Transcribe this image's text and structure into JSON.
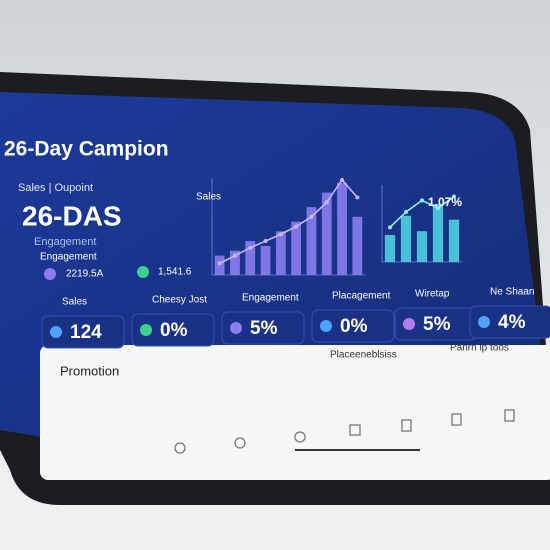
{
  "header": {
    "title": "26-Day Campion"
  },
  "summary": {
    "label": "Sales | Oupoint",
    "value": "26-DAS",
    "sub1": "Engagement",
    "sub2": "Engagement",
    "stat1": "2219.5A",
    "stat2": "1,541.6"
  },
  "charts": [
    {
      "type": "bar",
      "title": "Sales",
      "ylim": [
        0,
        100
      ],
      "color": "#8b7cf0",
      "line_color": "#c9b8ff",
      "values": [
        20,
        25,
        35,
        30,
        45,
        55,
        70,
        85,
        95,
        60
      ],
      "line": [
        12,
        20,
        28,
        35,
        42,
        50,
        60,
        75,
        98,
        80
      ]
    },
    {
      "type": "bar",
      "title": "1.07%",
      "ylim": [
        0,
        100
      ],
      "color": "#4fd1e0",
      "line_color": "#9be8ff",
      "values": [
        35,
        60,
        40,
        75,
        55
      ],
      "line": [
        45,
        65,
        80,
        70,
        85
      ]
    }
  ],
  "cards": [
    {
      "label": "Sales",
      "value": "124"
    },
    {
      "label": "Cheesy Jost",
      "value": "0%"
    },
    {
      "label": "Engagement",
      "value": "5%"
    },
    {
      "label": "Placagement",
      "value": "0%"
    },
    {
      "label": "Wiretap",
      "value": "5%"
    },
    {
      "label": "Ne Shaan",
      "value": "4%"
    }
  ],
  "panel": {
    "title": "Promotion",
    "col1": "Placeeneblsiss",
    "col2": "Panrn ip toos"
  }
}
